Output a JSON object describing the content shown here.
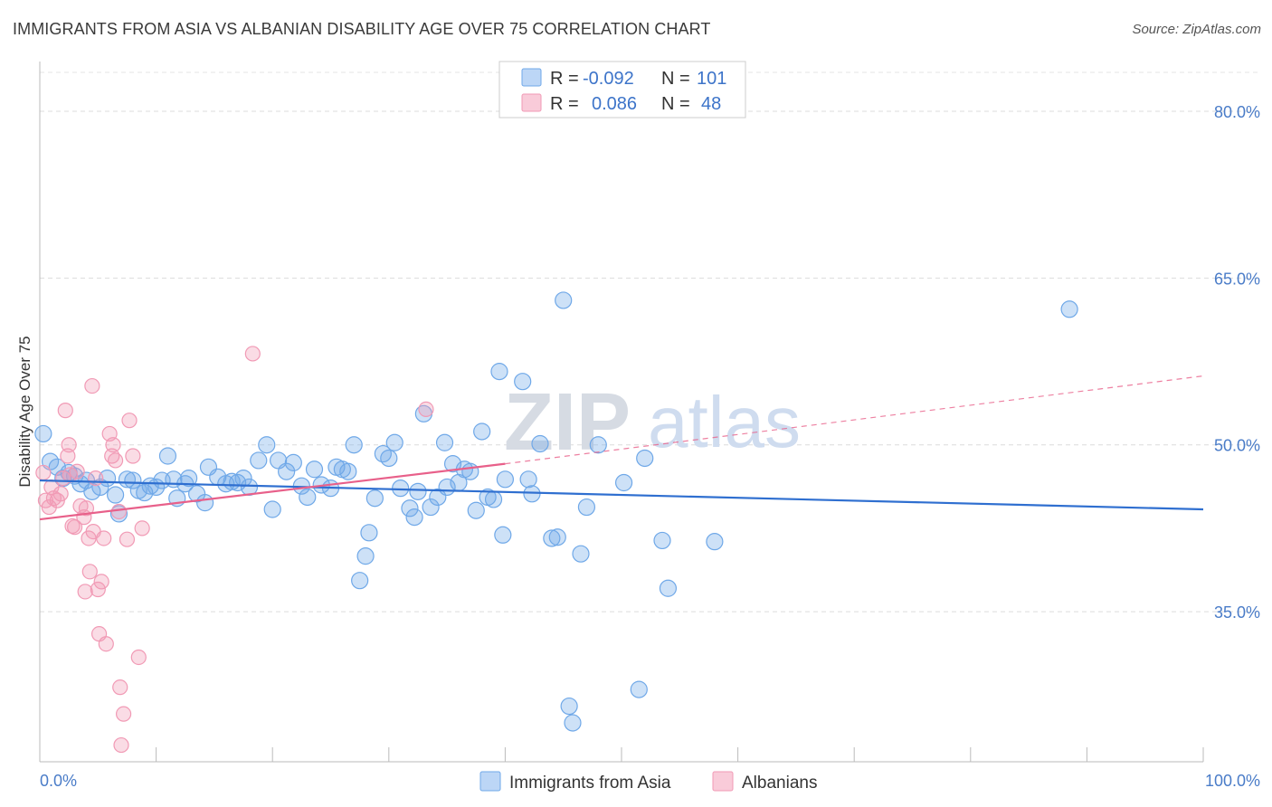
{
  "header": {
    "title": "IMMIGRANTS FROM ASIA VS ALBANIAN DISABILITY AGE OVER 75 CORRELATION CHART",
    "source": "Source: ZipAtlas.com"
  },
  "watermark": {
    "zip": "ZIP",
    "atlas": "atlas"
  },
  "legend": {
    "rows": [
      {
        "r_label": "R =",
        "r_value": "-0.092",
        "n_label": "N =",
        "n_value": "101",
        "color": "#6fa8e8"
      },
      {
        "r_label": "R =",
        "r_value": "0.086",
        "n_label": "N =",
        "n_value": "48",
        "color": "#f19ab5"
      }
    ]
  },
  "bottom_legend": [
    {
      "label": "Immigrants from Asia",
      "color": "#6fa8e8"
    },
    {
      "label": "Albanians",
      "color": "#f19ab5"
    }
  ],
  "chart_data": {
    "type": "scatter",
    "title": "IMMIGRANTS FROM ASIA VS ALBANIAN DISABILITY AGE OVER 75 CORRELATION CHART",
    "xlabel": "",
    "ylabel": "Disability Age Over 75",
    "xlim": [
      0,
      100
    ],
    "ylim": [
      21.5,
      83.5
    ],
    "x_tick_labels": [
      "0.0%",
      "100.0%"
    ],
    "y_ticks": [
      35,
      50,
      65,
      80
    ],
    "y_tick_labels": [
      "35.0%",
      "50.0%",
      "65.0%",
      "80.0%"
    ],
    "grid": "horizontal dashed",
    "legend_position": "top-center",
    "colors": {
      "asia": "#6fa8e8",
      "albanians": "#f19ab5",
      "asia_line": "#2f6fd0",
      "albanians_line": "#e8608a"
    },
    "series": [
      {
        "name": "Immigrants from Asia",
        "trend": {
          "x": [
            0,
            100
          ],
          "y": [
            46.8,
            44.2
          ]
        },
        "points": [
          [
            0.3,
            51.0
          ],
          [
            0.9,
            48.5
          ],
          [
            1.5,
            48.0
          ],
          [
            2.0,
            47.0
          ],
          [
            2.5,
            47.5
          ],
          [
            3.0,
            47.2
          ],
          [
            3.5,
            46.5
          ],
          [
            4.0,
            46.8
          ],
          [
            4.5,
            45.8
          ],
          [
            5.2,
            46.2
          ],
          [
            5.8,
            47.0
          ],
          [
            6.5,
            45.5
          ],
          [
            6.8,
            43.8
          ],
          [
            7.5,
            46.9
          ],
          [
            8.0,
            46.8
          ],
          [
            8.5,
            45.9
          ],
          [
            9.0,
            45.7
          ],
          [
            9.5,
            46.3
          ],
          [
            10.0,
            46.2
          ],
          [
            10.5,
            46.8
          ],
          [
            11.0,
            49.0
          ],
          [
            11.5,
            46.9
          ],
          [
            11.8,
            45.2
          ],
          [
            12.5,
            46.5
          ],
          [
            12.8,
            47.0
          ],
          [
            13.5,
            45.6
          ],
          [
            14.2,
            44.8
          ],
          [
            14.5,
            48.0
          ],
          [
            15.3,
            47.1
          ],
          [
            16.0,
            46.5
          ],
          [
            16.5,
            46.7
          ],
          [
            17.0,
            46.6
          ],
          [
            17.5,
            47.0
          ],
          [
            18.0,
            46.2
          ],
          [
            18.8,
            48.6
          ],
          [
            19.5,
            50.0
          ],
          [
            20.0,
            44.2
          ],
          [
            20.5,
            48.6
          ],
          [
            21.2,
            47.6
          ],
          [
            21.8,
            48.4
          ],
          [
            22.5,
            46.3
          ],
          [
            23.0,
            45.3
          ],
          [
            23.6,
            47.8
          ],
          [
            24.2,
            46.4
          ],
          [
            25.0,
            46.1
          ],
          [
            25.5,
            48.0
          ],
          [
            26.0,
            47.8
          ],
          [
            26.5,
            47.6
          ],
          [
            27.0,
            50.0
          ],
          [
            27.5,
            37.8
          ],
          [
            28.0,
            40.0
          ],
          [
            28.3,
            42.1
          ],
          [
            28.8,
            45.2
          ],
          [
            29.5,
            49.2
          ],
          [
            30.0,
            48.8
          ],
          [
            30.5,
            50.2
          ],
          [
            31.0,
            46.1
          ],
          [
            31.8,
            44.3
          ],
          [
            32.2,
            43.5
          ],
          [
            32.5,
            45.8
          ],
          [
            33.0,
            52.8
          ],
          [
            33.6,
            44.4
          ],
          [
            34.2,
            45.3
          ],
          [
            34.8,
            50.2
          ],
          [
            35.0,
            46.2
          ],
          [
            35.5,
            48.3
          ],
          [
            36.0,
            46.6
          ],
          [
            36.5,
            47.8
          ],
          [
            37.0,
            47.6
          ],
          [
            37.5,
            44.1
          ],
          [
            38.0,
            51.2
          ],
          [
            38.5,
            45.3
          ],
          [
            39.0,
            45.1
          ],
          [
            39.5,
            56.6
          ],
          [
            39.8,
            41.9
          ],
          [
            40.0,
            46.9
          ],
          [
            41.5,
            55.7
          ],
          [
            42.0,
            46.9
          ],
          [
            42.3,
            45.6
          ],
          [
            43.0,
            50.1
          ],
          [
            44.0,
            41.6
          ],
          [
            44.5,
            41.7
          ],
          [
            45.0,
            63.0
          ],
          [
            45.5,
            26.5
          ],
          [
            45.8,
            25.0
          ],
          [
            46.5,
            40.2
          ],
          [
            47.0,
            44.4
          ],
          [
            48.0,
            50.0
          ],
          [
            50.2,
            46.6
          ],
          [
            51.5,
            28.0
          ],
          [
            52.0,
            48.8
          ],
          [
            53.5,
            41.4
          ],
          [
            54.0,
            37.1
          ],
          [
            58.0,
            41.3
          ],
          [
            88.5,
            62.2
          ]
        ]
      },
      {
        "name": "Albanians",
        "trend": {
          "x": [
            0,
            40
          ],
          "y": [
            43.3,
            48.3
          ]
        },
        "trend_extension": {
          "x": [
            40,
            100
          ],
          "y": [
            48.3,
            56.2
          ]
        },
        "points": [
          [
            0.3,
            47.5
          ],
          [
            0.5,
            45.0
          ],
          [
            0.8,
            44.4
          ],
          [
            1.0,
            46.2
          ],
          [
            1.2,
            45.2
          ],
          [
            1.5,
            45.0
          ],
          [
            1.8,
            45.6
          ],
          [
            2.0,
            47.0
          ],
          [
            2.2,
            53.1
          ],
          [
            2.4,
            49.0
          ],
          [
            2.5,
            50.0
          ],
          [
            2.6,
            47.3
          ],
          [
            2.8,
            42.7
          ],
          [
            3.0,
            42.6
          ],
          [
            3.2,
            47.6
          ],
          [
            3.5,
            44.5
          ],
          [
            3.8,
            43.5
          ],
          [
            3.9,
            36.8
          ],
          [
            4.0,
            44.3
          ],
          [
            4.2,
            41.6
          ],
          [
            4.3,
            38.6
          ],
          [
            4.5,
            55.3
          ],
          [
            4.6,
            42.2
          ],
          [
            4.8,
            47.0
          ],
          [
            5.0,
            37.0
          ],
          [
            5.1,
            33.0
          ],
          [
            5.3,
            37.7
          ],
          [
            5.5,
            41.6
          ],
          [
            5.7,
            32.1
          ],
          [
            6.0,
            51.0
          ],
          [
            6.2,
            49.0
          ],
          [
            6.3,
            50.0
          ],
          [
            6.5,
            48.6
          ],
          [
            6.8,
            44.0
          ],
          [
            6.9,
            28.2
          ],
          [
            7.0,
            23.0
          ],
          [
            7.2,
            25.8
          ],
          [
            7.5,
            41.5
          ],
          [
            7.7,
            52.2
          ],
          [
            8.0,
            49.0
          ],
          [
            8.5,
            30.9
          ],
          [
            8.8,
            42.5
          ],
          [
            18.3,
            58.2
          ],
          [
            33.2,
            53.2
          ]
        ]
      }
    ]
  }
}
